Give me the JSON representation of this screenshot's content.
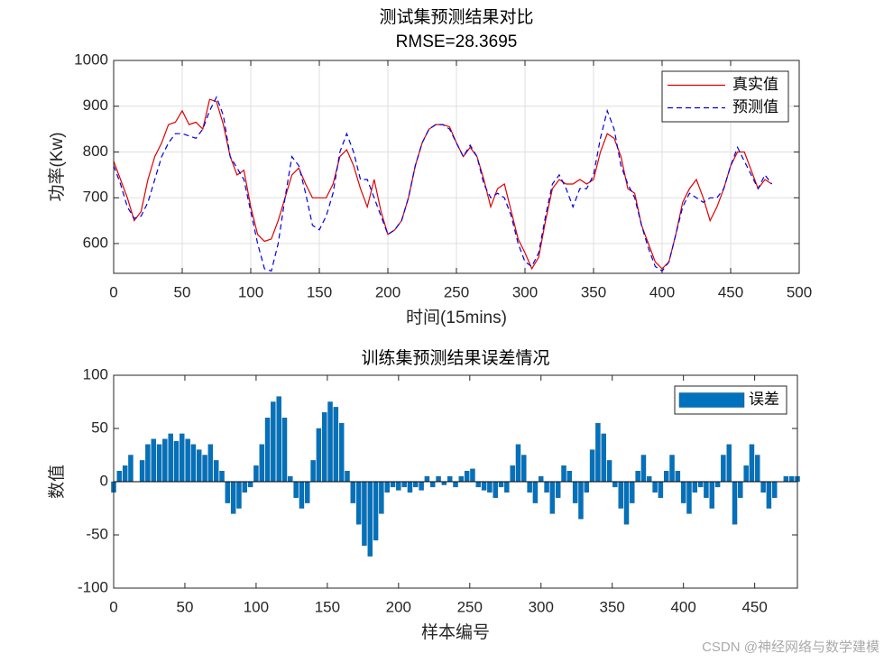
{
  "chart_data": [
    {
      "type": "line",
      "title": "测试集预测结果对比",
      "subtitle": "RMSE=28.3695",
      "x_label": "时间(15mins)",
      "y_label": "功率(Kw)",
      "x": [
        0,
        5,
        10,
        15,
        20,
        25,
        30,
        35,
        40,
        45,
        50,
        55,
        60,
        65,
        70,
        75,
        80,
        85,
        90,
        95,
        100,
        105,
        110,
        115,
        120,
        125,
        130,
        135,
        140,
        145,
        150,
        155,
        160,
        165,
        170,
        175,
        180,
        185,
        190,
        195,
        200,
        205,
        210,
        215,
        220,
        225,
        230,
        235,
        240,
        245,
        250,
        255,
        260,
        265,
        270,
        275,
        280,
        285,
        290,
        295,
        300,
        305,
        310,
        315,
        320,
        325,
        330,
        335,
        340,
        345,
        350,
        355,
        360,
        365,
        370,
        375,
        380,
        385,
        390,
        395,
        400,
        405,
        410,
        415,
        420,
        425,
        430,
        435,
        440,
        445,
        450,
        455,
        460,
        465,
        470,
        475,
        480
      ],
      "series": [
        {
          "name": "真实值",
          "color": "#e00000",
          "dash": false,
          "values": [
            780,
            740,
            700,
            650,
            670,
            740,
            790,
            820,
            860,
            865,
            890,
            860,
            865,
            850,
            915,
            910,
            860,
            790,
            750,
            760,
            680,
            620,
            605,
            610,
            650,
            700,
            750,
            765,
            730,
            700,
            700,
            700,
            730,
            790,
            805,
            770,
            720,
            680,
            740,
            670,
            620,
            630,
            650,
            700,
            770,
            820,
            850,
            860,
            860,
            855,
            820,
            790,
            810,
            790,
            740,
            680,
            720,
            730,
            670,
            610,
            580,
            545,
            570,
            650,
            720,
            740,
            730,
            730,
            740,
            730,
            740,
            800,
            840,
            830,
            790,
            720,
            710,
            640,
            600,
            560,
            545,
            560,
            620,
            690,
            720,
            740,
            700,
            650,
            680,
            720,
            770,
            800,
            800,
            760,
            720,
            740,
            730
          ]
        },
        {
          "name": "预测值",
          "color": "#0000e0",
          "dash": true,
          "values": [
            770,
            730,
            680,
            655,
            660,
            690,
            740,
            790,
            820,
            840,
            840,
            835,
            830,
            850,
            890,
            920,
            880,
            790,
            765,
            740,
            670,
            600,
            545,
            540,
            600,
            700,
            790,
            770,
            710,
            640,
            630,
            660,
            710,
            800,
            840,
            800,
            740,
            740,
            700,
            660,
            620,
            630,
            650,
            700,
            770,
            820,
            850,
            860,
            860,
            850,
            820,
            790,
            815,
            790,
            730,
            700,
            710,
            700,
            660,
            600,
            560,
            550,
            580,
            660,
            730,
            750,
            720,
            680,
            720,
            720,
            750,
            830,
            890,
            850,
            770,
            730,
            700,
            640,
            590,
            550,
            540,
            560,
            620,
            680,
            710,
            700,
            690,
            700,
            700,
            720,
            770,
            810,
            780,
            750,
            720,
            750,
            730
          ]
        }
      ],
      "xlim": [
        0,
        500
      ],
      "xticks": [
        0,
        50,
        100,
        150,
        200,
        250,
        300,
        350,
        400,
        450,
        500
      ],
      "ylim": [
        535,
        1000
      ],
      "yticks": [
        600,
        700,
        800,
        900,
        1000
      ],
      "grid": true,
      "legend": "northeast"
    },
    {
      "type": "bar",
      "title": "训练集预测结果误差情况",
      "x_label": "样本编号",
      "y_label": "数值",
      "x": [
        0,
        4,
        8,
        12,
        16,
        20,
        24,
        28,
        32,
        36,
        40,
        44,
        48,
        52,
        56,
        60,
        64,
        68,
        72,
        76,
        80,
        84,
        88,
        92,
        96,
        100,
        104,
        108,
        112,
        116,
        120,
        124,
        128,
        132,
        136,
        140,
        144,
        148,
        152,
        156,
        160,
        164,
        168,
        172,
        176,
        180,
        184,
        188,
        192,
        196,
        200,
        204,
        208,
        212,
        216,
        220,
        224,
        228,
        232,
        236,
        240,
        244,
        248,
        252,
        256,
        260,
        264,
        268,
        272,
        276,
        280,
        284,
        288,
        292,
        296,
        300,
        304,
        308,
        312,
        316,
        320,
        324,
        328,
        332,
        336,
        340,
        344,
        348,
        352,
        356,
        360,
        364,
        368,
        372,
        376,
        380,
        384,
        388,
        392,
        396,
        400,
        404,
        408,
        412,
        416,
        420,
        424,
        428,
        432,
        436,
        440,
        444,
        448,
        452,
        456,
        460,
        464,
        468,
        472,
        476,
        480
      ],
      "series": [
        {
          "name": "误差",
          "color": "#0072bd",
          "values": [
            -10,
            10,
            15,
            25,
            0,
            20,
            35,
            40,
            35,
            40,
            45,
            38,
            45,
            40,
            35,
            30,
            25,
            35,
            20,
            10,
            -20,
            -30,
            -25,
            -10,
            -5,
            15,
            35,
            60,
            75,
            80,
            60,
            5,
            -15,
            -25,
            -20,
            20,
            50,
            65,
            75,
            70,
            55,
            10,
            -20,
            -40,
            -60,
            -70,
            -55,
            -30,
            -10,
            -5,
            -8,
            -5,
            -10,
            -5,
            -8,
            5,
            -5,
            5,
            -3,
            5,
            -5,
            5,
            10,
            12,
            -5,
            -8,
            -10,
            -15,
            -5,
            -10,
            15,
            35,
            25,
            -10,
            -20,
            5,
            -10,
            -30,
            -15,
            15,
            10,
            -20,
            -35,
            -10,
            30,
            55,
            45,
            20,
            -5,
            -25,
            -40,
            -20,
            10,
            25,
            5,
            -10,
            -15,
            10,
            25,
            10,
            -20,
            -30,
            -10,
            -5,
            -15,
            -25,
            -5,
            25,
            35,
            -40,
            -15,
            15,
            35,
            25,
            -10,
            -25,
            -15,
            0,
            5,
            5,
            5
          ]
        }
      ],
      "xlim": [
        0,
        480
      ],
      "xticks": [
        0,
        50,
        100,
        150,
        200,
        250,
        300,
        350,
        400,
        450
      ],
      "ylim": [
        -100,
        100
      ],
      "yticks": [
        -100,
        -50,
        0,
        50,
        100
      ],
      "grid": false,
      "legend": "northeast"
    }
  ],
  "watermark": "CSDN @神经网络与数学建模"
}
